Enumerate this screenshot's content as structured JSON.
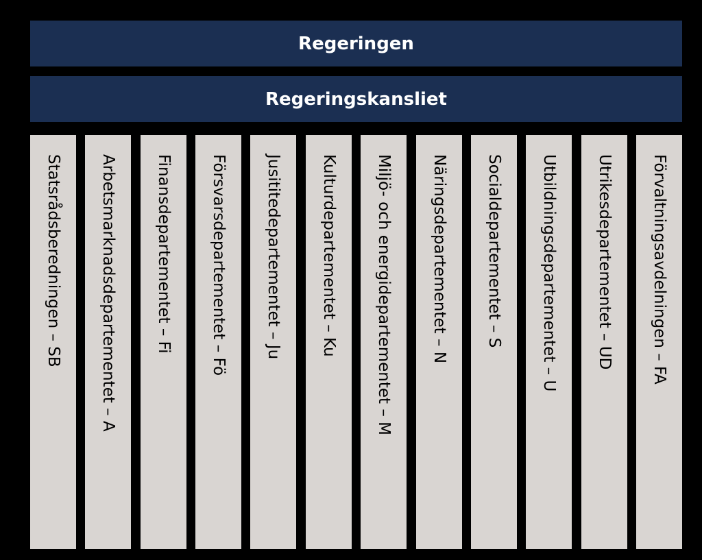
{
  "top": {
    "label": "Regeringen"
  },
  "sub": {
    "label": "Regeringskansliet"
  },
  "departments": [
    {
      "label": "Statsrådsberedningen – SB"
    },
    {
      "label": "Arbetsmarknadsdepartementet – A"
    },
    {
      "label": "Finansdepartementet – Fi"
    },
    {
      "label": "Försvarsdepartementet – Fö"
    },
    {
      "label": "Jusititedepartementet – Ju"
    },
    {
      "label": "Kulturdepartementet – Ku"
    },
    {
      "label": "Miljö- och energidepartementet – M"
    },
    {
      "label": "Näringsdepartementet – N"
    },
    {
      "label": "Socialdepartementet – S"
    },
    {
      "label": "Utbildningsdepartementet – U"
    },
    {
      "label": "Utrikesdepartementet – UD"
    },
    {
      "label": "Förvaltningsavdelningen – FA"
    }
  ],
  "colors": {
    "background": "#000000",
    "header": "#1b2f52",
    "header_text": "#ffffff",
    "column": "#d9d5d2",
    "column_text": "#000000"
  }
}
